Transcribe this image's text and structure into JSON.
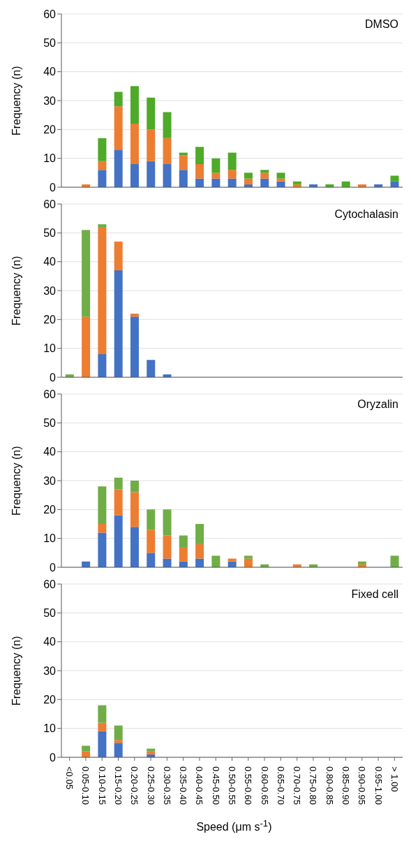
{
  "chart_data": [
    {
      "type": "bar",
      "stacked": true,
      "title": "DMSO",
      "ylabel": "Frequency (n)",
      "categories": [
        null,
        null,
        null,
        null,
        null,
        null,
        null,
        null,
        null,
        null,
        null,
        null,
        null,
        null,
        null,
        null,
        null,
        null,
        null,
        null,
        null
      ],
      "ylim": [
        0,
        60
      ],
      "yticks": [
        0,
        10,
        20,
        30,
        40,
        50,
        60
      ],
      "grid": "y",
      "legend": false,
      "tick_labels": "y",
      "series": [
        {
          "color": "#4472c4",
          "values": [
            0,
            0,
            6,
            13,
            8,
            9,
            8,
            6,
            3,
            3,
            3,
            1,
            3,
            2,
            0,
            1,
            0,
            0,
            0,
            1,
            2
          ]
        },
        {
          "color": "#ed7d31",
          "values": [
            0,
            1,
            3,
            15,
            14,
            11,
            9,
            5,
            5,
            2,
            3,
            2,
            2,
            1,
            1,
            0,
            0,
            0,
            1,
            0,
            0
          ]
        },
        {
          "color": "#4eaa28",
          "values": [
            0,
            0,
            8,
            5,
            13,
            11,
            9,
            1,
            6,
            5,
            6,
            2,
            1,
            2,
            1,
            0,
            1,
            2,
            0,
            0,
            2
          ]
        }
      ]
    },
    {
      "type": "bar",
      "stacked": true,
      "title": "Cytochalasin",
      "ylabel": "Frequency (n)",
      "categories": [
        null,
        null,
        null,
        null,
        null,
        null,
        null,
        null,
        null,
        null,
        null,
        null,
        null,
        null,
        null,
        null,
        null,
        null,
        null,
        null,
        null
      ],
      "ylim": [
        0,
        60
      ],
      "yticks": [
        0,
        10,
        20,
        30,
        40,
        50,
        60
      ],
      "grid": "y",
      "legend": false,
      "tick_labels": "y",
      "series": [
        {
          "color": "#4472c4",
          "values": [
            0,
            0,
            8,
            37,
            21,
            6,
            1,
            0,
            0,
            0,
            0,
            0,
            0,
            0,
            0,
            0,
            0,
            0,
            0,
            0,
            0
          ]
        },
        {
          "color": "#ed7d31",
          "values": [
            0,
            21,
            44,
            10,
            1,
            0,
            0,
            0,
            0,
            0,
            0,
            0,
            0,
            0,
            0,
            0,
            0,
            0,
            0,
            0,
            0
          ]
        },
        {
          "color": "#70ad47",
          "values": [
            1,
            30,
            1,
            0,
            0,
            0,
            0,
            0,
            0,
            0,
            0,
            0,
            0,
            0,
            0,
            0,
            0,
            0,
            0,
            0,
            0
          ]
        }
      ]
    },
    {
      "type": "bar",
      "stacked": true,
      "title": "Oryzalin",
      "ylabel": "Frequency (n)",
      "categories": [
        null,
        null,
        null,
        null,
        null,
        null,
        null,
        null,
        null,
        null,
        null,
        null,
        null,
        null,
        null,
        null,
        null,
        null,
        null,
        null,
        null
      ],
      "ylim": [
        0,
        60
      ],
      "yticks": [
        0,
        10,
        20,
        30,
        40,
        50,
        60
      ],
      "grid": "y",
      "legend": false,
      "tick_labels": "y",
      "series": [
        {
          "color": "#4472c4",
          "values": [
            0,
            2,
            12,
            18,
            14,
            5,
            3,
            2,
            3,
            0,
            2,
            0,
            0,
            0,
            0,
            0,
            0,
            0,
            0,
            0,
            0
          ]
        },
        {
          "color": "#ed7d31",
          "values": [
            0,
            0,
            3,
            9,
            12,
            8,
            8,
            5,
            5,
            0,
            1,
            3,
            0,
            0,
            1,
            0,
            0,
            0,
            1,
            0,
            0
          ]
        },
        {
          "color": "#70ad47",
          "values": [
            0,
            0,
            13,
            4,
            4,
            7,
            9,
            4,
            7,
            4,
            0,
            1,
            1,
            0,
            0,
            1,
            0,
            0,
            1,
            0,
            4
          ]
        }
      ]
    },
    {
      "type": "bar",
      "stacked": true,
      "title": "Fixed cell",
      "ylabel": "Frequency (n)",
      "xlabel": "Speed (μm s$^{-1}$)",
      "categories": [
        "<0.05",
        "0.05-0.10",
        "0.10-0.15",
        "0.15-0.20",
        "0.20-0.25",
        "0.25-0.30",
        "0.30-0.35",
        "0.35-0.40",
        "0.40-0.45",
        "0.45-0.50",
        "0.50-0.55",
        "0.55-0.60",
        "0.60-0.65",
        "0.65-0.70",
        "0.70-0.75",
        "0.75-0.80",
        "0.80-0.85",
        "0.85-0.90",
        "0.90-0.95",
        "0.95-1.00",
        "> 1.00"
      ],
      "ylim": [
        0,
        60
      ],
      "yticks": [
        0,
        10,
        20,
        30,
        40,
        50,
        60
      ],
      "grid": "y",
      "legend": false,
      "series": [
        {
          "color": "#4472c4",
          "values": [
            0,
            0,
            9,
            5,
            0,
            1,
            0,
            0,
            0,
            0,
            0,
            0,
            0,
            0,
            0,
            0,
            0,
            0,
            0,
            0,
            0
          ]
        },
        {
          "color": "#ed7d31",
          "values": [
            0,
            2,
            3,
            1,
            0,
            1,
            0,
            0,
            0,
            0,
            0,
            0,
            0,
            0,
            0,
            0,
            0,
            0,
            0,
            0,
            0
          ]
        },
        {
          "color": "#70ad47",
          "values": [
            0,
            2,
            6,
            5,
            0,
            1,
            0,
            0,
            0,
            0,
            0,
            0,
            0,
            0,
            0,
            0,
            0,
            0,
            0,
            0,
            0
          ]
        }
      ]
    }
  ]
}
